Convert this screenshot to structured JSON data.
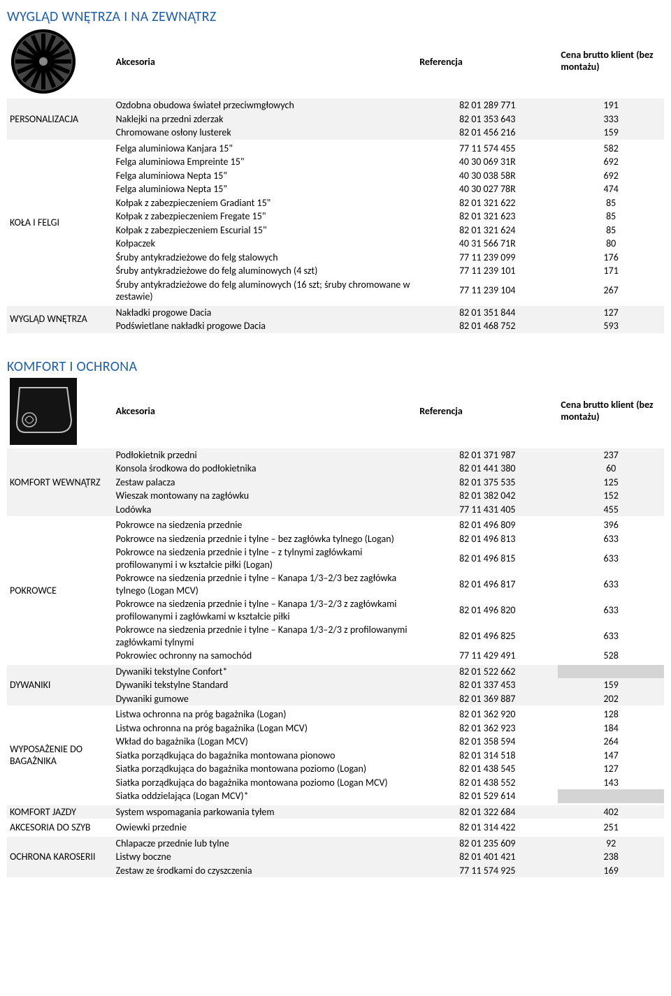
{
  "headers": {
    "accessory": "Akcesoria",
    "reference": "Referencja",
    "price": "Cena brutto klient (bez montażu)"
  },
  "sections": [
    {
      "title": "WYGLĄD WNĘTRZA I NA ZEWNĄTRZ",
      "thumb": "wheel",
      "groups": [
        {
          "category": "PERSONALIZACJA",
          "shaded": true,
          "rows": [
            {
              "name": "Ozdobna obudowa świateł przeciwmgłowych",
              "ref": "82 01 289 771",
              "price": "191"
            },
            {
              "name": "Naklejki na przedni zderzak",
              "ref": "82 01 353 643",
              "price": "333"
            },
            {
              "name": "Chromowane osłony lusterek",
              "ref": "82 01 456 216",
              "price": "159"
            }
          ]
        },
        {
          "category": "KOŁA I FELGI",
          "shaded": false,
          "rows": [
            {
              "name": "Felga aluminiowa Kanjara 15\"",
              "ref": "77 11 574 455",
              "price": "582"
            },
            {
              "name": "Felga aluminiowa Empreinte 15\"",
              "ref": "40 30 069 31R",
              "price": "692"
            },
            {
              "name": "Felga aluminiowa Nepta 15\"",
              "ref": "40 30 038 58R",
              "price": "692"
            },
            {
              "name": "Felga aluminiowa Nepta 15\"",
              "ref": "40 30 027 78R",
              "price": "474"
            },
            {
              "name": "Kołpak z zabezpieczeniem Gradiant 15\"",
              "ref": "82 01 321 622",
              "price": "85"
            },
            {
              "name": "Kołpak z zabezpieczeniem Fregate 15\"",
              "ref": "82 01 321 623",
              "price": "85"
            },
            {
              "name": "Kołpak z zabezpieczeniem Escurial 15\"",
              "ref": "82 01 321 624",
              "price": "85"
            },
            {
              "name": "Kołpaczek",
              "ref": "40 31 566 71R",
              "price": "80"
            },
            {
              "name": "Śruby antykradzieżowe do felg stalowych",
              "ref": "77 11 239 099",
              "price": "176"
            },
            {
              "name": "Śruby antykradzieżowe do felg aluminowych (4 szt)",
              "ref": "77 11 239 101",
              "price": "171"
            },
            {
              "name": "Śruby antykradzieżowe do felg aluminowych (16 szt; śruby chromowane w zestawie)",
              "ref": "77 11 239 104",
              "price": "267"
            }
          ]
        },
        {
          "category": "WYGLĄD WNĘTRZA",
          "shaded": true,
          "rows": [
            {
              "name": "Nakładki progowe Dacia",
              "ref": "82 01 351 844",
              "price": "127"
            },
            {
              "name": "Podświetlane nakładki progowe Dacia",
              "ref": "82 01 468 752",
              "price": "593"
            }
          ]
        }
      ]
    },
    {
      "title": "KOMFORT I OCHRONA",
      "thumb": "mat",
      "groups": [
        {
          "category": "KOMFORT WEWNĄTRZ",
          "shaded": true,
          "rows": [
            {
              "name": "Podłokietnik przedni",
              "ref": "82 01 371 987",
              "price": "237"
            },
            {
              "name": "Konsola środkowa do podłokietnika",
              "ref": "82 01 441 380",
              "price": "60"
            },
            {
              "name": "Zestaw palacza",
              "ref": "82 01 375 535",
              "price": "125"
            },
            {
              "name": "Wieszak montowany na zagłówku",
              "ref": "82 01 382 042",
              "price": "152"
            },
            {
              "name": "Lodówka",
              "ref": "77 11 431 405",
              "price": "455"
            }
          ]
        },
        {
          "category": "POKROWCE",
          "shaded": false,
          "rows": [
            {
              "name": "Pokrowce na siedzenia przednie",
              "ref": "82 01 496 809",
              "price": "396"
            },
            {
              "name": "Pokrowce na siedzenia przednie i tylne – bez zagłówka tylnego (Logan)",
              "ref": "82 01 496 813",
              "price": "633"
            },
            {
              "name": "Pokrowce na siedzenia przednie i tylne – z tylnymi zagłówkami profilowanymi i w kształcie piłki (Logan)",
              "ref": "82 01 496 815",
              "price": "633"
            },
            {
              "name": "Pokrowce na siedzenia przednie i tylne – Kanapa 1/3–2/3 bez zagłówka tylnego (Logan MCV)",
              "ref": "82 01 496 817",
              "price": "633"
            },
            {
              "name": "Pokrowce na siedzenia przednie i tylne – Kanapa 1/3–2/3 z zagłówkami profilowanymi i zagłówkami w kształcie piłki",
              "ref": "82 01 496 820",
              "price": "633"
            },
            {
              "name": "Pokrowce na siedzenia przednie i tylne – Kanapa 1/3–2/3 z profilowanymi zagłówkami tylnymi",
              "ref": "82 01 496 825",
              "price": "633"
            },
            {
              "name": "Pokrowiec ochronny na samochód",
              "ref": "77 11 429 491",
              "price": "528"
            }
          ]
        },
        {
          "category": "DYWANIKI",
          "shaded": true,
          "rows": [
            {
              "name": "Dywaniki tekstylne Confort*",
              "ref": "82 01 522 662",
              "price": "",
              "na": true
            },
            {
              "name": "Dywaniki tekstylne Standard",
              "ref": "82 01 337 453",
              "price": "159"
            },
            {
              "name": "Dywaniki gumowe",
              "ref": "82 01 369 887",
              "price": "202"
            }
          ]
        },
        {
          "category": "WYPOSAŻENIE DO BAGAŻNIKA",
          "shaded": false,
          "rows": [
            {
              "name": "Listwa ochronna na próg bagażnika (Logan)",
              "ref": "82 01 362 920",
              "price": "128"
            },
            {
              "name": "Listwa ochronna na próg bagażnika (Logan MCV)",
              "ref": "82 01 362 923",
              "price": "184"
            },
            {
              "name": "Wkład do bagażnika (Logan MCV)",
              "ref": "82 01 358 594",
              "price": "264"
            },
            {
              "name": "Siatka porządkująca do bagażnika montowana pionowo",
              "ref": "82 01 314 518",
              "price": "147"
            },
            {
              "name": "Siatka porządkująca do bagażnika montowana poziomo (Logan)",
              "ref": "82 01 438 545",
              "price": "127"
            },
            {
              "name": "Siatka porządkująca do bagażnika montowana poziomo (Logan MCV)",
              "ref": "82 01 438 552",
              "price": "143"
            },
            {
              "name": "Siatka oddzielająca (Logan MCV)*",
              "ref": "82 01 529 614",
              "price": "",
              "na": true
            }
          ]
        },
        {
          "category": "KOMFORT JAZDY",
          "shaded": true,
          "rows": [
            {
              "name": "System wspomagania parkowania tyłem",
              "ref": "82 01 322 684",
              "price": "402"
            }
          ]
        },
        {
          "category": "AKCESORIA DO SZYB",
          "shaded": false,
          "rows": [
            {
              "name": "Owiewki przednie",
              "ref": "82 01 314 422",
              "price": "251"
            }
          ]
        },
        {
          "category": "OCHRONA KAROSERII",
          "shaded": true,
          "rows": [
            {
              "name": "Chlapacze przednie lub tylne",
              "ref": "82 01 235 609",
              "price": "92"
            },
            {
              "name": "Listwy boczne",
              "ref": "82 01 401 421",
              "price": "238"
            },
            {
              "name": "Zestaw ze środkami do czyszczenia",
              "ref": "77 11 574 925",
              "price": "169"
            }
          ]
        }
      ]
    }
  ]
}
